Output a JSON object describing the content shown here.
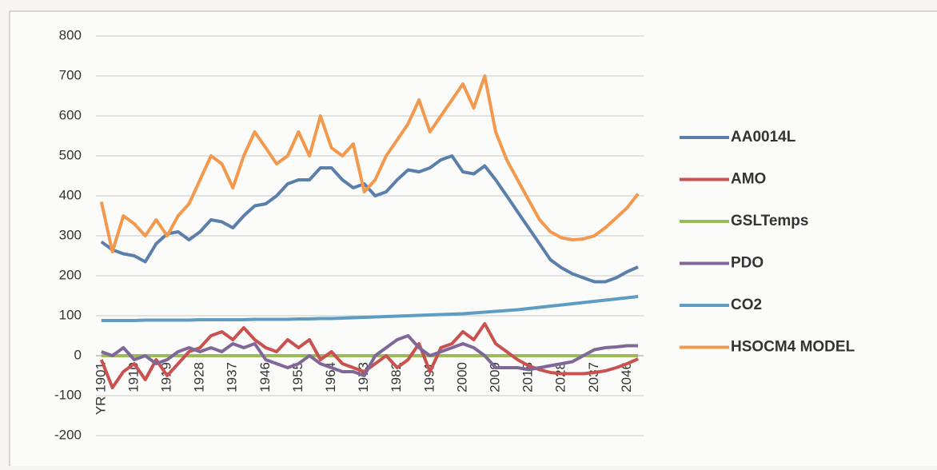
{
  "chart_data": {
    "type": "line",
    "categories": [
      "YR 1901",
      null,
      null,
      "1910",
      null,
      null,
      "1919",
      null,
      null,
      "1928",
      null,
      null,
      "1937",
      null,
      null,
      "1946",
      null,
      null,
      "1955",
      null,
      null,
      "1964",
      null,
      null,
      "1973",
      null,
      null,
      "1982",
      null,
      null,
      "1991",
      null,
      null,
      "2000",
      null,
      null,
      "2009",
      null,
      null,
      "2018",
      null,
      null,
      "2028",
      null,
      null,
      "2037",
      null,
      null,
      "2046",
      null
    ],
    "series": [
      {
        "name": "AA0014L",
        "color": "#5a7fab",
        "values": [
          285,
          265,
          255,
          250,
          235,
          280,
          305,
          310,
          290,
          310,
          340,
          335,
          320,
          350,
          375,
          380,
          400,
          430,
          440,
          440,
          470,
          470,
          440,
          420,
          430,
          400,
          410,
          440,
          465,
          460,
          470,
          490,
          500,
          460,
          455,
          475,
          440,
          400,
          360,
          320,
          280,
          240,
          220,
          205,
          195,
          185,
          185,
          195,
          210,
          222
        ]
      },
      {
        "name": "AMO",
        "color": "#c9514f",
        "values": [
          -10,
          -80,
          -40,
          -20,
          -60,
          -10,
          -50,
          -20,
          10,
          20,
          50,
          60,
          40,
          70,
          40,
          20,
          10,
          40,
          20,
          40,
          -10,
          10,
          -20,
          -30,
          -40,
          -20,
          0,
          -30,
          -10,
          30,
          -40,
          20,
          30,
          60,
          40,
          80,
          30,
          10,
          -10,
          -25,
          -35,
          -42,
          -45,
          -45,
          -45,
          -42,
          -38,
          -30,
          -20,
          -8
        ]
      },
      {
        "name": "GSLTemps",
        "color": "#9bbb59",
        "values": [
          0,
          0,
          0,
          0,
          0,
          0,
          0,
          0,
          0,
          0,
          0,
          0,
          0,
          0,
          0,
          0,
          0,
          0,
          0,
          0,
          0,
          0,
          0,
          0,
          0,
          0,
          0,
          0,
          0,
          0,
          0,
          0,
          0,
          0,
          0,
          0,
          0,
          0,
          0,
          0,
          0,
          0,
          0,
          0,
          0,
          0,
          0,
          0,
          0,
          0
        ]
      },
      {
        "name": "PDO",
        "color": "#7f6898",
        "values": [
          10,
          0,
          20,
          -10,
          0,
          -20,
          -10,
          10,
          20,
          10,
          20,
          10,
          30,
          20,
          30,
          -10,
          -20,
          -30,
          -20,
          0,
          -20,
          -30,
          -40,
          -40,
          -50,
          0,
          20,
          40,
          50,
          20,
          0,
          10,
          20,
          30,
          20,
          0,
          -30,
          -30,
          -30,
          -35,
          -30,
          -25,
          -20,
          -15,
          0,
          15,
          20,
          22,
          25,
          25
        ]
      },
      {
        "name": "CO2",
        "color": "#5f9cc4",
        "values": [
          88,
          88,
          88,
          88,
          89,
          89,
          89,
          89,
          89,
          90,
          90,
          90,
          90,
          90,
          91,
          91,
          91,
          91,
          92,
          92,
          93,
          93,
          94,
          95,
          96,
          97,
          98,
          99,
          100,
          101,
          102,
          103,
          104,
          105,
          107,
          109,
          111,
          113,
          115,
          118,
          121,
          124,
          127,
          130,
          133,
          136,
          139,
          142,
          145,
          148
        ]
      },
      {
        "name": "HSOCM4 MODEL",
        "color": "#f2994e",
        "values": [
          385,
          260,
          350,
          330,
          300,
          340,
          300,
          350,
          380,
          440,
          500,
          480,
          420,
          500,
          560,
          520,
          480,
          500,
          560,
          500,
          600,
          520,
          500,
          530,
          410,
          440,
          500,
          540,
          580,
          640,
          560,
          600,
          640,
          680,
          620,
          700,
          560,
          490,
          440,
          390,
          340,
          310,
          295,
          290,
          292,
          300,
          320,
          345,
          370,
          405
        ]
      }
    ],
    "ylim": [
      -200,
      800
    ],
    "yticks": [
      -200,
      -100,
      0,
      100,
      200,
      300,
      400,
      500,
      600,
      700,
      800
    ],
    "grid": true,
    "legend": "right"
  }
}
